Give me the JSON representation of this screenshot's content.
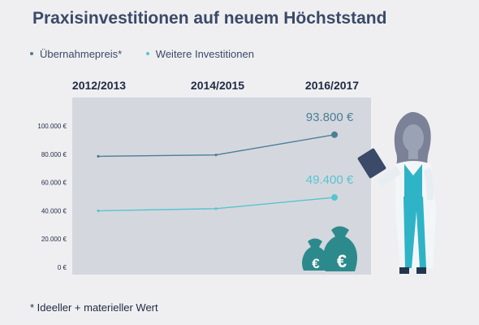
{
  "colors": {
    "background": "#efeff1",
    "plot_area": "#d5d7de",
    "title": "#3a4a68",
    "series_1": "#4a7f94",
    "series_2": "#56c5cf",
    "money_bag": "#2d8a8c"
  },
  "icons": [
    "woman-doctor-icon",
    "clipboard-icon",
    "money-bag-euro-icon"
  ],
  "footnote": "* Ideeller + materieller Wert",
  "chart_data": {
    "type": "line",
    "title": "Praxisinvestitionen auf neuem Höchststand",
    "categories": [
      "2012/2013",
      "2014/2015",
      "2016/2017"
    ],
    "yticks": [
      "100.000 €",
      "80.000 €",
      "60.000 €",
      "40.000 €",
      "20.000 €",
      "0 €"
    ],
    "ytick_values": [
      100000,
      80000,
      60000,
      40000,
      20000,
      0
    ],
    "ylim": [
      0,
      100000
    ],
    "grid": false,
    "legend": "top-left",
    "series": [
      {
        "name": "Übernahmepreis*",
        "values": [
          78500,
          79500,
          93800
        ],
        "end_label": "93.800 €"
      },
      {
        "name": "Weitere Investitionen",
        "values": [
          40000,
          41500,
          49400
        ],
        "end_label": "49.400 €"
      }
    ]
  }
}
